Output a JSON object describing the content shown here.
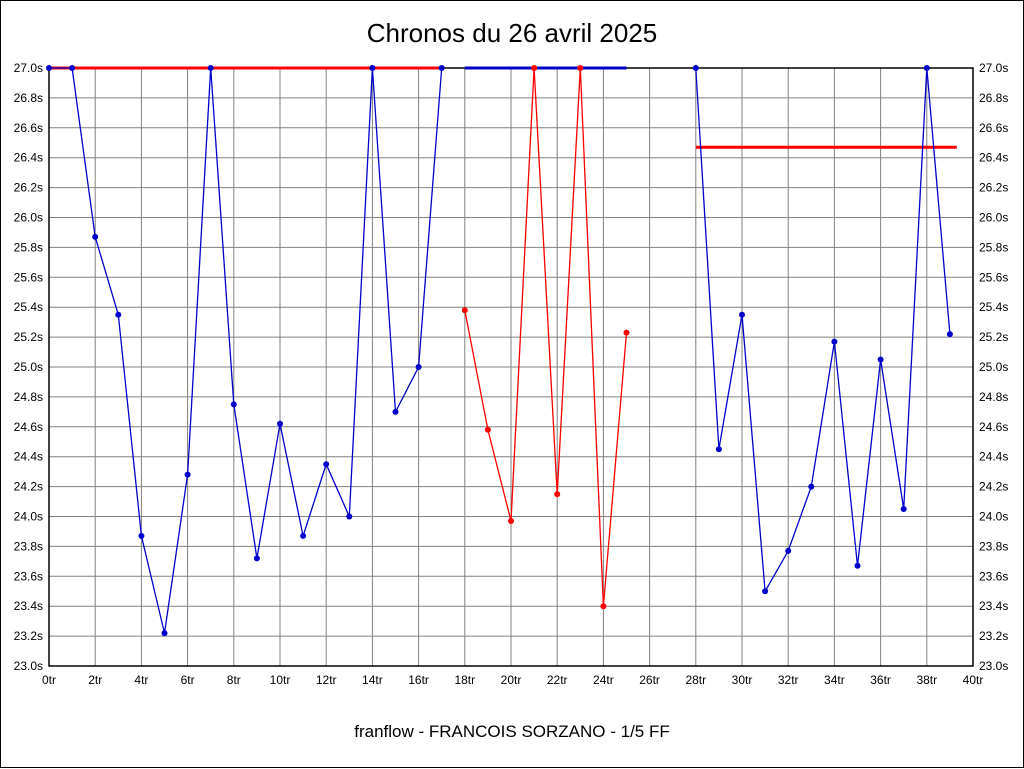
{
  "chart_data": {
    "type": "line",
    "title": "Chronos du 26 avril 2025",
    "footer": "franflow - FRANCOIS SORZANO - 1/5 FF",
    "xlabel": "",
    "ylabel": "",
    "x_unit": "tr",
    "y_unit": "s",
    "xlim": [
      0,
      40
    ],
    "ylim": [
      23.0,
      27.0
    ],
    "grid": true,
    "legend": "none",
    "x_tick_values": [
      0,
      2,
      4,
      6,
      8,
      10,
      12,
      14,
      16,
      18,
      20,
      22,
      24,
      26,
      28,
      30,
      32,
      34,
      36,
      38,
      40
    ],
    "x_tick_labels": [
      "0tr",
      "2tr",
      "4tr",
      "6tr",
      "8tr",
      "10tr",
      "12tr",
      "14tr",
      "16tr",
      "18tr",
      "20tr",
      "22tr",
      "24tr",
      "26tr",
      "28tr",
      "30tr",
      "32tr",
      "34tr",
      "36tr",
      "38tr",
      "40tr"
    ],
    "y_tick_values": [
      27.0,
      26.8,
      26.6,
      26.4,
      26.2,
      26.0,
      25.8,
      25.6,
      25.4,
      25.2,
      25.0,
      24.8,
      24.6,
      24.4,
      24.2,
      24.0,
      23.8,
      23.6,
      23.4,
      23.2,
      23.0
    ],
    "y_tick_labels": [
      "27.0s",
      "26.8s",
      "26.6s",
      "26.4s",
      "26.2s",
      "26.0s",
      "25.8s",
      "25.6s",
      "25.4s",
      "25.2s",
      "25.0s",
      "24.8s",
      "24.6s",
      "24.4s",
      "24.2s",
      "24.0s",
      "23.8s",
      "23.6s",
      "23.4s",
      "23.2s",
      "23.0s"
    ],
    "colors": {
      "blue_series": "#0000cc",
      "red_series": "#ff0000",
      "grid": "#808080",
      "axis": "#000000",
      "background": "#ffffff"
    },
    "series": [
      {
        "name": "blue-run-1",
        "color": "#0000cc",
        "marker": true,
        "points": [
          [
            0,
            27.0
          ],
          [
            1,
            27.0
          ],
          [
            2,
            25.87
          ],
          [
            3,
            25.35
          ],
          [
            4,
            23.87
          ],
          [
            5,
            23.22
          ],
          [
            6,
            24.28
          ],
          [
            7,
            27.0
          ],
          [
            8,
            24.75
          ],
          [
            9,
            23.72
          ],
          [
            10,
            24.62
          ],
          [
            11,
            23.87
          ],
          [
            12,
            24.35
          ],
          [
            13,
            24.0
          ],
          [
            14,
            27.0
          ],
          [
            15,
            24.7
          ],
          [
            16,
            25.0
          ],
          [
            17,
            27.0
          ]
        ]
      },
      {
        "name": "red-run",
        "color": "#ff0000",
        "marker": true,
        "points": [
          [
            18,
            25.38
          ],
          [
            19,
            24.58
          ],
          [
            20,
            23.97
          ],
          [
            21,
            27.0
          ],
          [
            22,
            24.15
          ],
          [
            23,
            27.0
          ],
          [
            24,
            23.4
          ],
          [
            25,
            25.23
          ]
        ]
      },
      {
        "name": "blue-run-2",
        "color": "#0000cc",
        "marker": true,
        "points": [
          [
            28,
            27.0
          ],
          [
            29,
            24.45
          ],
          [
            30,
            25.35
          ],
          [
            31,
            23.5
          ],
          [
            32,
            23.77
          ],
          [
            33,
            24.2
          ],
          [
            34,
            25.17
          ],
          [
            35,
            23.67
          ],
          [
            36,
            25.05
          ],
          [
            37,
            24.05
          ],
          [
            38,
            27.0
          ],
          [
            39,
            25.22
          ]
        ]
      }
    ],
    "reference_lines": [
      {
        "name": "red-top-line",
        "color": "#ff0000",
        "y": 27.0,
        "x_start": 0,
        "x_end": 17,
        "width": 3
      },
      {
        "name": "blue-top-line",
        "color": "#0000cc",
        "y": 27.0,
        "x_start": 18,
        "x_end": 25,
        "width": 3
      },
      {
        "name": "red-mid-line",
        "color": "#ff0000",
        "y": 26.47,
        "x_start": 28,
        "x_end": 39.3,
        "width": 3
      }
    ]
  }
}
